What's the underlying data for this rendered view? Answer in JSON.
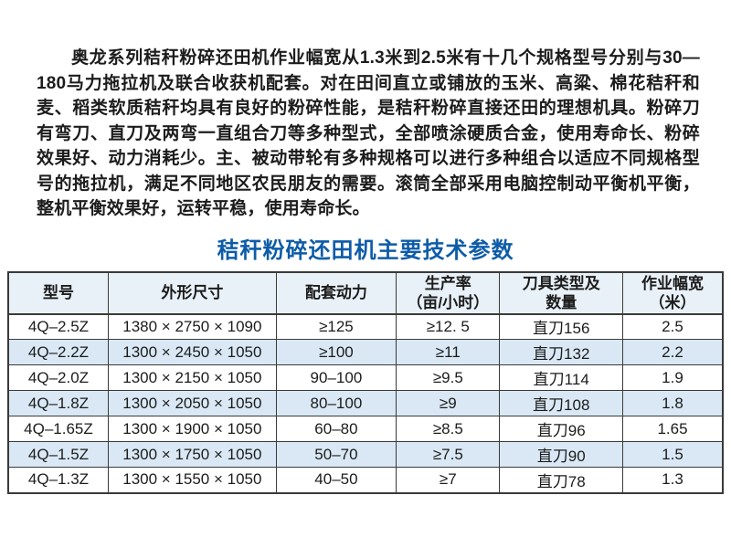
{
  "document": {
    "intro_paragraph": "奥龙系列秸秆粉碎还田机作业幅宽从1.3米到2.5米有十几个规格型号分别与30—180马力拖拉机及联合收获机配套。对在田间直立或铺放的玉米、高粱、棉花秸秆和麦、稻类软质秸秆均具有良好的粉碎性能，是秸秆粉碎直接还田的理想机具。粉碎刀有弯刀、直刀及两弯一直组合刀等多种型式，全部喷涂硬质合金，使用寿命长、粉碎效果好、动力消耗少。主、被动带轮有多种规格可以进行多种组合以适应不同规格型号的拖拉机，满足不同地区农民朋友的需要。滚筒全部采用电脑控制动平衡机平衡，整机平衡效果好，运转平稳，使用寿命长。",
    "table_title": "秸秆粉碎还田机主要技术参数"
  },
  "table": {
    "headers": [
      "型号",
      "外形尺寸",
      "配套动力",
      "生产率\n（亩/小时）",
      "刀具类型及\n数量",
      "作业幅宽\n（米）"
    ],
    "rows": [
      [
        "4Q–2.5Z",
        "1380 × 2750 × 1090",
        "≥125",
        "≥12. 5",
        "直刀156",
        "2.5"
      ],
      [
        "4Q–2.2Z",
        "1300 × 2450 × 1050",
        "≥100",
        "≥11",
        "直刀132",
        "2.2"
      ],
      [
        "4Q–2.0Z",
        "1300 × 2150 × 1050",
        "90–100",
        "≥9.5",
        "直刀114",
        "1.9"
      ],
      [
        "4Q–1.8Z",
        "1300 × 2050 × 1050",
        "80–100",
        "≥9",
        "直刀108",
        "1.8"
      ],
      [
        "4Q–1.65Z",
        "1300 × 1900 × 1050",
        "60–80",
        "≥8.5",
        "直刀96",
        "1.65"
      ],
      [
        "4Q–1.5Z",
        "1300 × 1750 × 1050",
        "50–70",
        "≥7.5",
        "直刀90",
        "1.5"
      ],
      [
        "4Q–1.3Z",
        "1300 × 1550 × 1050",
        "40–50",
        "≥7",
        "直刀78",
        "1.3"
      ]
    ]
  },
  "colors": {
    "title_blue": "#0e5ca8",
    "header_row_bg": "#e9f1f8",
    "alt_row_bg": "#d9e8f4",
    "table_border": "#3a3a3a",
    "text": "#1c1c1c"
  }
}
